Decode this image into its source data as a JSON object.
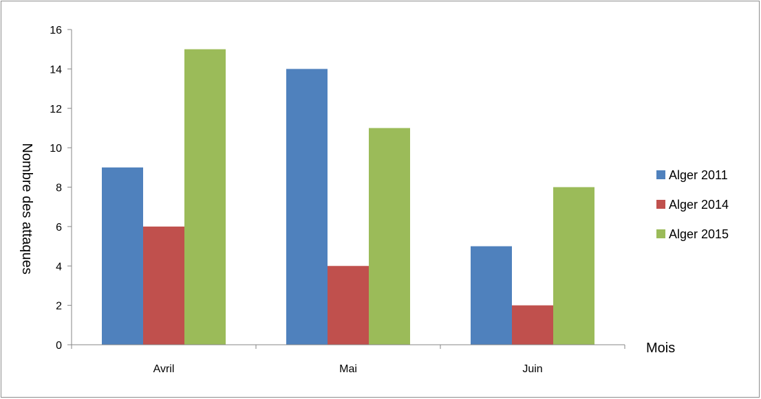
{
  "chart_data": {
    "type": "bar",
    "title": "",
    "xlabel": "Mois",
    "ylabel": "Nombre des attaques",
    "categories": [
      "Avril",
      "Mai",
      "Juin"
    ],
    "series": [
      {
        "name": "Alger 2011",
        "color": "#4F81BD",
        "values": [
          9,
          14,
          5
        ]
      },
      {
        "name": "Alger 2014",
        "color": "#C0504D",
        "values": [
          6,
          4,
          2
        ]
      },
      {
        "name": "Alger 2015",
        "color": "#9BBB59",
        "values": [
          15,
          11,
          8
        ]
      }
    ],
    "ylim": [
      0,
      16
    ],
    "yticks": [
      0,
      2,
      4,
      6,
      8,
      10,
      12,
      14,
      16
    ],
    "grid": false,
    "legend": "right"
  }
}
